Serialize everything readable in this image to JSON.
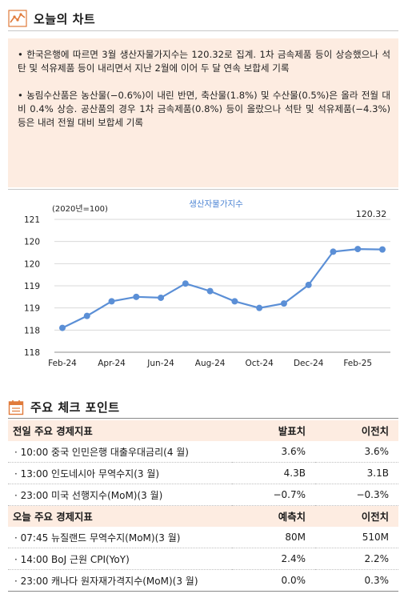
{
  "section1": {
    "title": "오늘의 차트"
  },
  "summary": {
    "paragraphs": [
      "• 한국은행에 따르면 3월 생산자물가지수는 120.32로 집계. 1차 금속제품 등이 상승했으나 석탄 및 석유제품 등이 내리면서 지난 2월에 이어 두 달 연속 보합세 기록",
      "• 농림수산품은 농산물(−0.6%)이 내린 반면, 축산물(1.8%) 및 수산물(0.5%)은 올라 전월 대비 0.4% 상승. 공산품의 경우 1차 금속제품(0.8%) 등이 올랐으나 석탄 및 석유제품(−4.3%) 등은 내려 전월 대비 보합세 기록"
    ]
  },
  "chart_data": {
    "type": "line",
    "title": "생산자물가지수",
    "unit_note": "(2020년=100)",
    "x": [
      "Feb-24",
      "Mar-24",
      "Apr-24",
      "May-24",
      "Jun-24",
      "Jul-24",
      "Aug-24",
      "Sep-24",
      "Oct-24",
      "Nov-24",
      "Dec-24",
      "Jan-25",
      "Feb-25",
      "Mar-25"
    ],
    "x_tick_labels": [
      "Feb-24",
      "Apr-24",
      "Jun-24",
      "Aug-24",
      "Oct-24",
      "Dec-24",
      "Feb-25"
    ],
    "series": [
      {
        "values": [
          118.55,
          118.82,
          119.15,
          119.25,
          119.23,
          119.55,
          119.38,
          119.15,
          119.0,
          119.1,
          119.52,
          120.27,
          120.33,
          120.32
        ]
      }
    ],
    "ylim": [
      118,
      121
    ],
    "y_tick_labels": [
      "121",
      "120",
      "120",
      "119",
      "119",
      "118",
      "118"
    ],
    "annotation": "120.32",
    "line_color": "#5b8fd6",
    "grid": "horizontal"
  },
  "section2": {
    "title": "주요 체크 포인트"
  },
  "table1": {
    "headers": [
      "전일 주요 경제지표",
      "발표치",
      "이전치"
    ],
    "rows": [
      [
        "· 10:00 중국 인민은행 대출우대금리(4 월)",
        "3.6%",
        "3.6%"
      ],
      [
        "· 13:00 인도네시아 무역수지(3 월)",
        "4.3B",
        "3.1B"
      ],
      [
        "· 23:00 미국 선행지수(MoM)(3 월)",
        "−0.7%",
        "−0.3%"
      ]
    ]
  },
  "table2": {
    "headers": [
      "오늘 주요 경제지표",
      "예측치",
      "이전치"
    ],
    "rows": [
      [
        "· 07:45 뉴질랜드 무역수지(MoM)(3 월)",
        "80M",
        "510M"
      ],
      [
        "· 14:00 BoJ 근원 CPI(YoY)",
        "2.4%",
        "2.2%"
      ],
      [
        "· 23:00 캐나다 원자재가격지수(MoM)(3 월)",
        "0.0%",
        "0.3%"
      ]
    ]
  },
  "colors": {
    "accent": "#e07a3a",
    "panel": "#fdece1",
    "line": "#5b8fd6"
  }
}
